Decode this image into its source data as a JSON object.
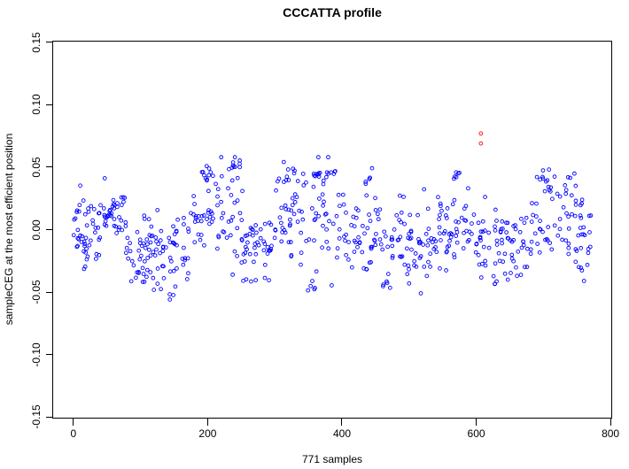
{
  "chart_data": {
    "type": "scatter",
    "title": "CCCATTA profile",
    "xlabel": "771 samples",
    "ylabel": "sampleCEG at the most efficient position",
    "n_samples": 771,
    "grid": false,
    "legend": null,
    "xlim": [
      -30.84,
      801.84
    ],
    "ylim": [
      -0.1513,
      0.1513
    ],
    "x_ticks": [
      {
        "v": 0,
        "label": "0"
      },
      {
        "v": 200,
        "label": "200"
      },
      {
        "v": 400,
        "label": "400"
      },
      {
        "v": 600,
        "label": "600"
      },
      {
        "v": 800,
        "label": "800"
      }
    ],
    "y_ticks": [
      {
        "v": 0.15,
        "label": "0.15"
      },
      {
        "v": 0.1,
        "label": "0.10"
      },
      {
        "v": 0.05,
        "label": "0.05"
      },
      {
        "v": 0.0,
        "label": "0.00"
      },
      {
        "v": -0.05,
        "label": "-0.05"
      },
      {
        "v": -0.1,
        "label": "-0.10"
      },
      {
        "v": -0.15,
        "label": "-0.15"
      }
    ],
    "point_style": {
      "shape": "open-circle",
      "radius": 1.9,
      "stroke_width": 0.9
    },
    "point_color": "#0000FF",
    "outlier_color": "#FF0000",
    "outliers": [
      {
        "x": 607,
        "y": 0.077
      },
      {
        "x": 607,
        "y": 0.069
      }
    ],
    "y_range_observed": [
      -0.056,
      0.058
    ],
    "y_clip": [
      -0.056,
      0.058
    ],
    "seed": 1371,
    "point_clusters_format": "[x_start, x_end, count, y_mean, y_sd]",
    "point_clusters": [
      [
        0,
        40,
        48,
        -0.003,
        0.013
      ],
      [
        40,
        78,
        40,
        0.012,
        0.011
      ],
      [
        78,
        122,
        42,
        -0.016,
        0.013
      ],
      [
        122,
        172,
        46,
        -0.012,
        0.017
      ],
      [
        172,
        212,
        28,
        0.012,
        0.016
      ],
      [
        212,
        252,
        36,
        0.012,
        0.02
      ],
      [
        252,
        300,
        45,
        -0.012,
        0.015
      ],
      [
        300,
        338,
        34,
        0.008,
        0.018
      ],
      [
        338,
        396,
        40,
        0.008,
        0.022
      ],
      [
        396,
        432,
        28,
        -0.002,
        0.015
      ],
      [
        432,
        472,
        28,
        -0.008,
        0.017
      ],
      [
        472,
        512,
        38,
        -0.008,
        0.016
      ],
      [
        512,
        562,
        46,
        -0.005,
        0.016
      ],
      [
        562,
        592,
        24,
        0.006,
        0.015
      ],
      [
        592,
        642,
        44,
        -0.01,
        0.016
      ],
      [
        642,
        682,
        31,
        -0.012,
        0.016
      ],
      [
        682,
        732,
        34,
        0.008,
        0.016
      ],
      [
        732,
        771,
        40,
        -0.002,
        0.017
      ],
      [
        186,
        206,
        10,
        0.044,
        0.005
      ],
      [
        230,
        254,
        9,
        0.051,
        0.004
      ],
      [
        142,
        158,
        4,
        -0.05,
        0.004
      ],
      [
        92,
        112,
        5,
        -0.036,
        0.005
      ],
      [
        310,
        330,
        8,
        0.045,
        0.004
      ],
      [
        354,
        390,
        14,
        0.044,
        0.003
      ],
      [
        346,
        364,
        6,
        -0.044,
        0.005
      ],
      [
        430,
        448,
        7,
        0.038,
        0.007
      ],
      [
        458,
        474,
        5,
        -0.042,
        0.004
      ],
      [
        564,
        580,
        6,
        0.044,
        0.004
      ],
      [
        624,
        668,
        6,
        -0.038,
        0.004
      ],
      [
        698,
        720,
        8,
        0.042,
        0.006
      ],
      [
        732,
        750,
        5,
        0.04,
        0.005
      ],
      [
        518,
        536,
        4,
        -0.036,
        0.004
      ]
    ]
  }
}
